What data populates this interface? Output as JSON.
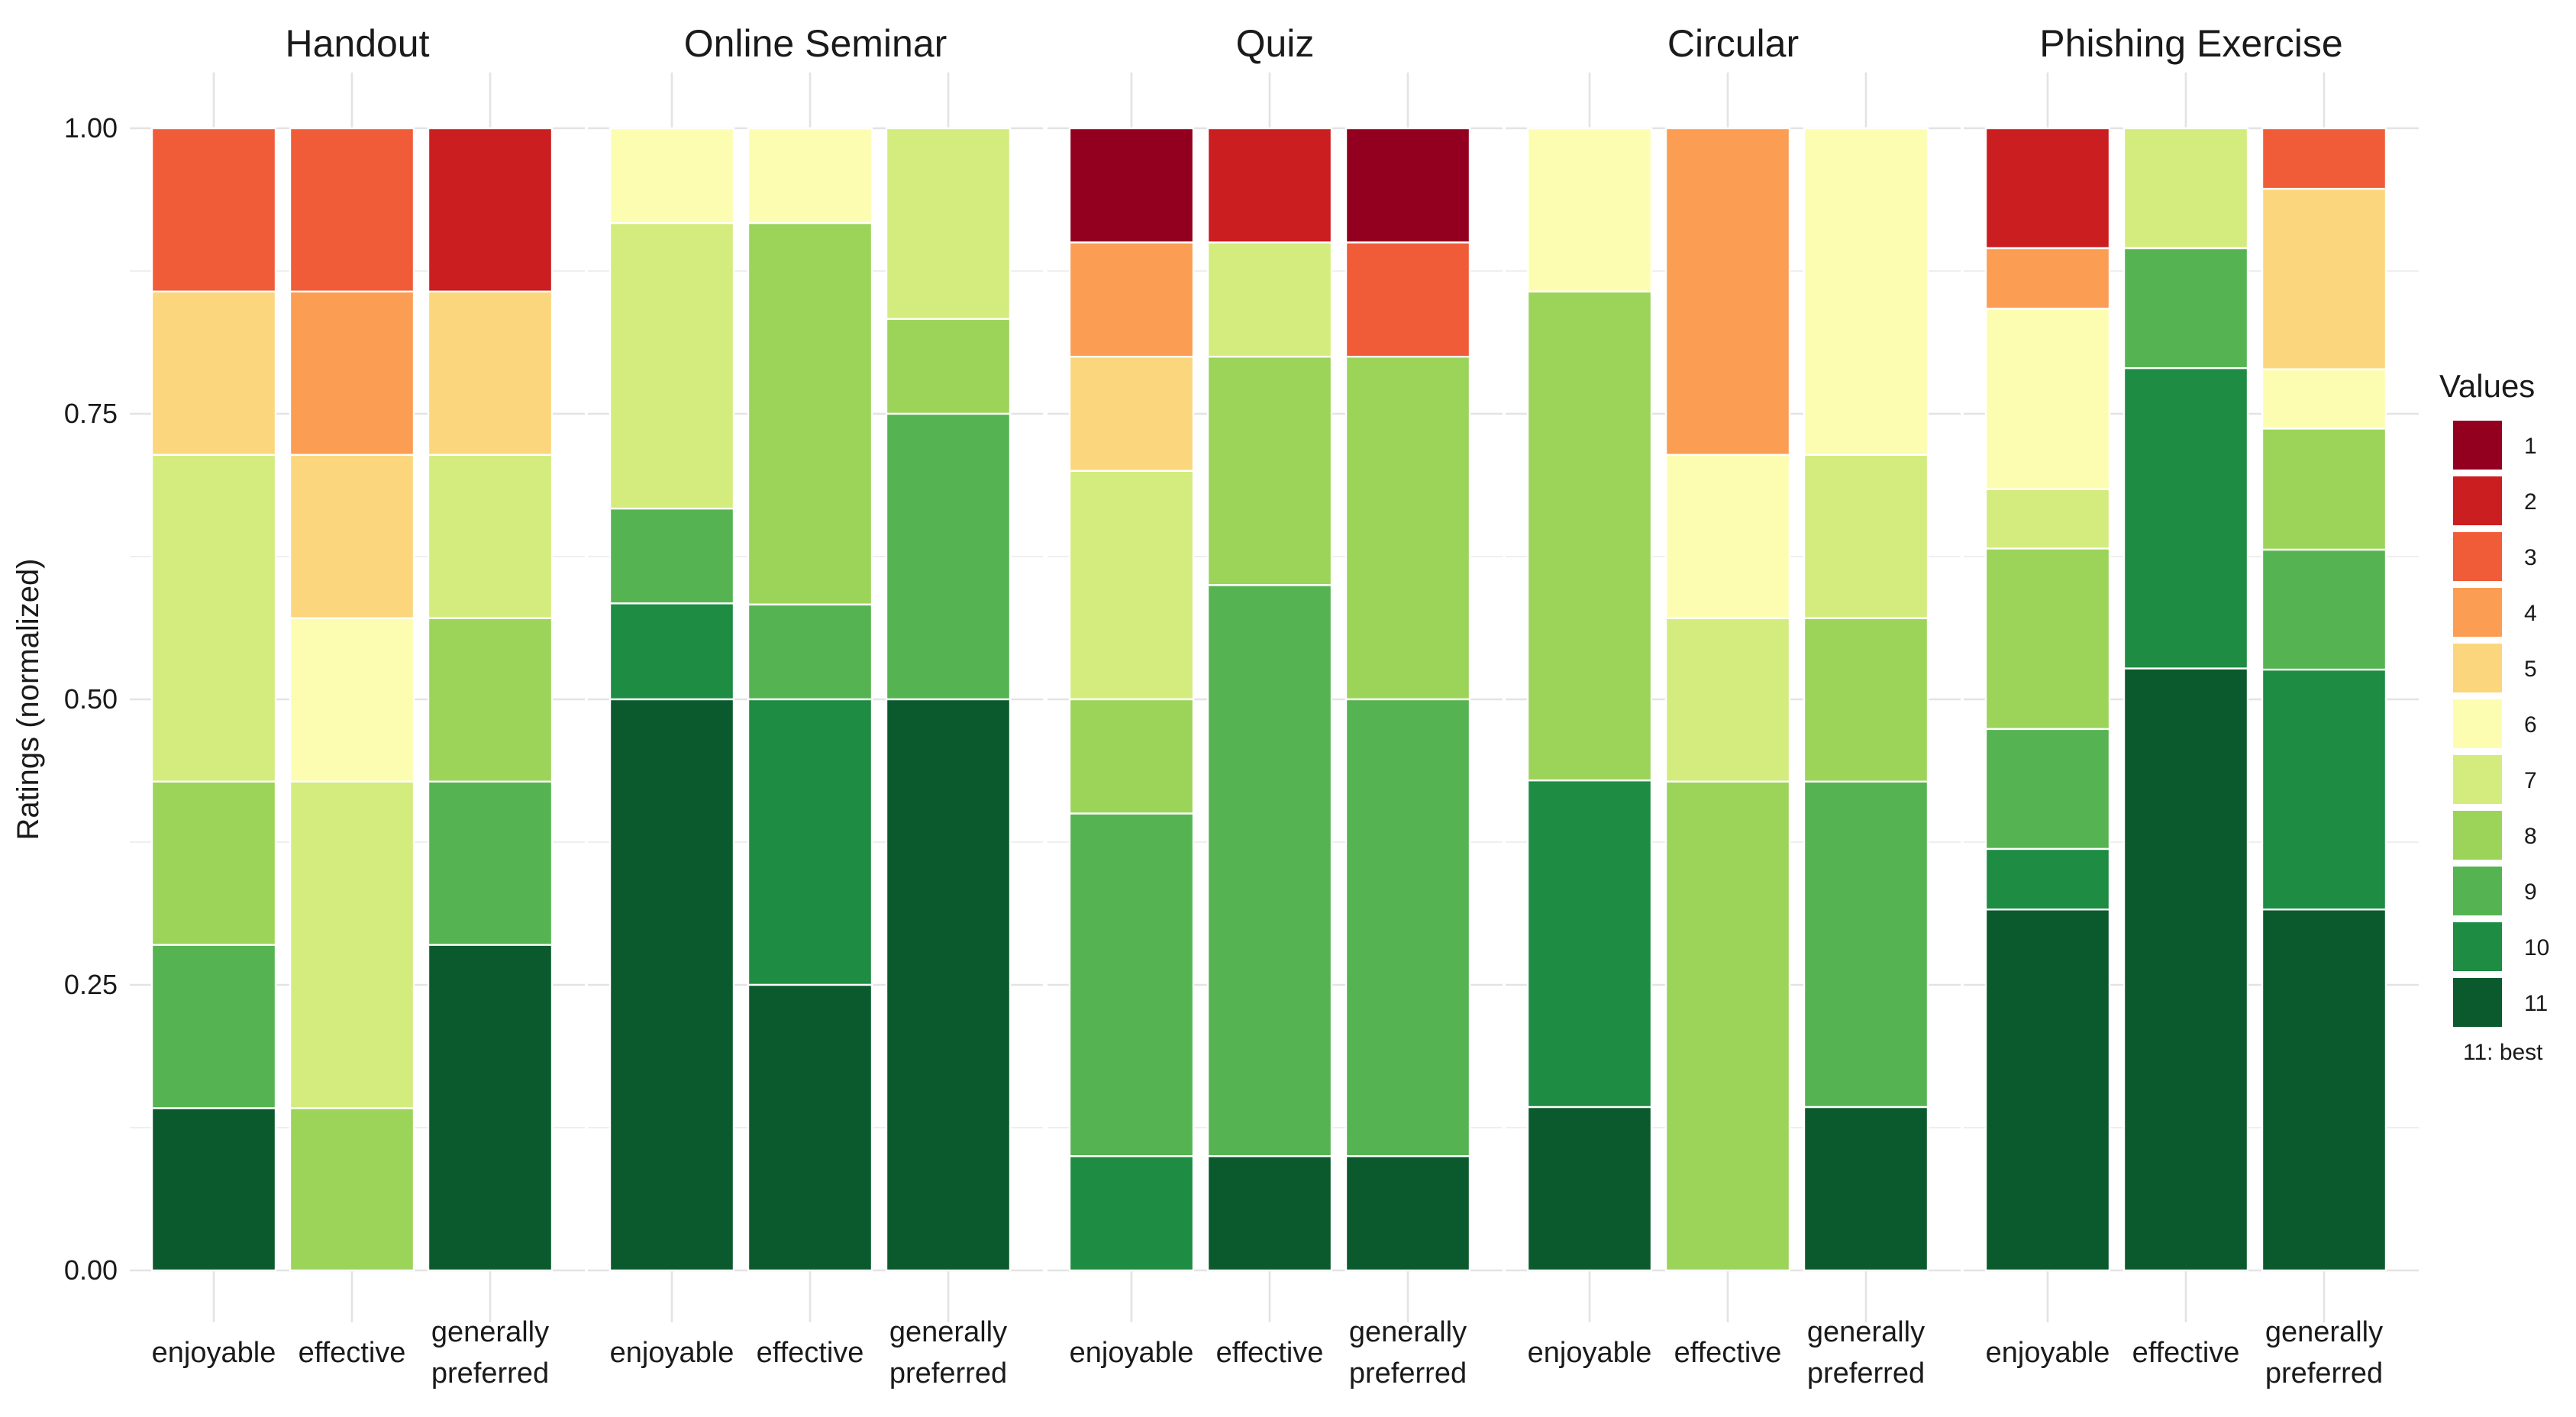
{
  "chart_data": {
    "type": "bar",
    "stacked": true,
    "normalized": true,
    "ylabel": "Ratings (normalized)",
    "ylim": [
      0,
      1
    ],
    "yticks": [
      "0.00",
      "0.25",
      "0.50",
      "0.75",
      "1.00"
    ],
    "ytick_values": [
      0,
      0.25,
      0.5,
      0.75,
      1
    ],
    "categories": [
      {
        "key": "enjoyable",
        "lines": [
          "enjoyable"
        ]
      },
      {
        "key": "effective",
        "lines": [
          "effective"
        ]
      },
      {
        "key": "generally preferred",
        "lines": [
          "generally",
          "preferred"
        ]
      }
    ],
    "legend": {
      "title": "Values",
      "note": "11: best",
      "levels": [
        "1",
        "2",
        "3",
        "4",
        "5",
        "6",
        "7",
        "8",
        "9",
        "10",
        "11"
      ],
      "colors": [
        "#93001f",
        "#cb1e21",
        "#f05c38",
        "#fb9d52",
        "#fbd67c",
        "#fdfdb2",
        "#d3ec7d",
        "#9bd459",
        "#56b352",
        "#1e8c43",
        "#0b5a2d"
      ]
    },
    "panels": [
      {
        "title": "Handout",
        "bars": [
          {
            "category": "enjoyable",
            "segments": [
              {
                "value": 3,
                "share": 0.143
              },
              {
                "value": 5,
                "share": 0.143
              },
              {
                "value": 7,
                "share": 0.286
              },
              {
                "value": 8,
                "share": 0.143
              },
              {
                "value": 9,
                "share": 0.143
              },
              {
                "value": 11,
                "share": 0.142
              }
            ]
          },
          {
            "category": "effective",
            "segments": [
              {
                "value": 3,
                "share": 0.143
              },
              {
                "value": 4,
                "share": 0.143
              },
              {
                "value": 5,
                "share": 0.143
              },
              {
                "value": 6,
                "share": 0.143
              },
              {
                "value": 7,
                "share": 0.286
              },
              {
                "value": 8,
                "share": 0.142
              }
            ]
          },
          {
            "category": "generally preferred",
            "segments": [
              {
                "value": 2,
                "share": 0.143
              },
              {
                "value": 5,
                "share": 0.143
              },
              {
                "value": 7,
                "share": 0.143
              },
              {
                "value": 8,
                "share": 0.143
              },
              {
                "value": 9,
                "share": 0.143
              },
              {
                "value": 11,
                "share": 0.285
              }
            ]
          }
        ]
      },
      {
        "title": "Online Seminar",
        "bars": [
          {
            "category": "enjoyable",
            "segments": [
              {
                "value": 6,
                "share": 0.083
              },
              {
                "value": 7,
                "share": 0.25
              },
              {
                "value": 9,
                "share": 0.083
              },
              {
                "value": 10,
                "share": 0.084
              },
              {
                "value": 11,
                "share": 0.5
              }
            ]
          },
          {
            "category": "effective",
            "segments": [
              {
                "value": 6,
                "share": 0.083
              },
              {
                "value": 8,
                "share": 0.334
              },
              {
                "value": 9,
                "share": 0.083
              },
              {
                "value": 10,
                "share": 0.25
              },
              {
                "value": 11,
                "share": 0.25
              }
            ]
          },
          {
            "category": "generally preferred",
            "segments": [
              {
                "value": 7,
                "share": 0.167
              },
              {
                "value": 8,
                "share": 0.083
              },
              {
                "value": 9,
                "share": 0.25
              },
              {
                "value": 11,
                "share": 0.5
              }
            ]
          }
        ]
      },
      {
        "title": "Quiz",
        "bars": [
          {
            "category": "enjoyable",
            "segments": [
              {
                "value": 1,
                "share": 0.1
              },
              {
                "value": 4,
                "share": 0.1
              },
              {
                "value": 5,
                "share": 0.1
              },
              {
                "value": 7,
                "share": 0.2
              },
              {
                "value": 8,
                "share": 0.1
              },
              {
                "value": 9,
                "share": 0.3
              },
              {
                "value": 10,
                "share": 0.1
              }
            ]
          },
          {
            "category": "effective",
            "segments": [
              {
                "value": 2,
                "share": 0.1
              },
              {
                "value": 7,
                "share": 0.1
              },
              {
                "value": 8,
                "share": 0.2
              },
              {
                "value": 9,
                "share": 0.5
              },
              {
                "value": 11,
                "share": 0.1
              }
            ]
          },
          {
            "category": "generally preferred",
            "segments": [
              {
                "value": 1,
                "share": 0.1
              },
              {
                "value": 3,
                "share": 0.1
              },
              {
                "value": 8,
                "share": 0.3
              },
              {
                "value": 9,
                "share": 0.4
              },
              {
                "value": 11,
                "share": 0.1
              }
            ]
          }
        ]
      },
      {
        "title": "Circular",
        "bars": [
          {
            "category": "enjoyable",
            "segments": [
              {
                "value": 6,
                "share": 0.143
              },
              {
                "value": 8,
                "share": 0.428
              },
              {
                "value": 10,
                "share": 0.286
              },
              {
                "value": 11,
                "share": 0.143
              }
            ]
          },
          {
            "category": "effective",
            "segments": [
              {
                "value": 4,
                "share": 0.286
              },
              {
                "value": 6,
                "share": 0.143
              },
              {
                "value": 7,
                "share": 0.143
              },
              {
                "value": 8,
                "share": 0.428
              }
            ]
          },
          {
            "category": "generally preferred",
            "segments": [
              {
                "value": 6,
                "share": 0.286
              },
              {
                "value": 7,
                "share": 0.143
              },
              {
                "value": 8,
                "share": 0.143
              },
              {
                "value": 9,
                "share": 0.285
              },
              {
                "value": 11,
                "share": 0.143
              }
            ]
          }
        ]
      },
      {
        "title": "Phishing Exercise",
        "bars": [
          {
            "category": "enjoyable",
            "segments": [
              {
                "value": 2,
                "share": 0.105
              },
              {
                "value": 4,
                "share": 0.053
              },
              {
                "value": 6,
                "share": 0.158
              },
              {
                "value": 7,
                "share": 0.052
              },
              {
                "value": 8,
                "share": 0.158
              },
              {
                "value": 9,
                "share": 0.105
              },
              {
                "value": 10,
                "share": 0.053
              },
              {
                "value": 11,
                "share": 0.316
              }
            ]
          },
          {
            "category": "effective",
            "segments": [
              {
                "value": 7,
                "share": 0.105
              },
              {
                "value": 9,
                "share": 0.105
              },
              {
                "value": 10,
                "share": 0.263
              },
              {
                "value": 11,
                "share": 0.527
              }
            ]
          },
          {
            "category": "generally preferred",
            "segments": [
              {
                "value": 3,
                "share": 0.053
              },
              {
                "value": 5,
                "share": 0.158
              },
              {
                "value": 6,
                "share": 0.052
              },
              {
                "value": 8,
                "share": 0.106
              },
              {
                "value": 9,
                "share": 0.105
              },
              {
                "value": 10,
                "share": 0.21
              },
              {
                "value": 11,
                "share": 0.316
              }
            ]
          }
        ]
      }
    ]
  }
}
